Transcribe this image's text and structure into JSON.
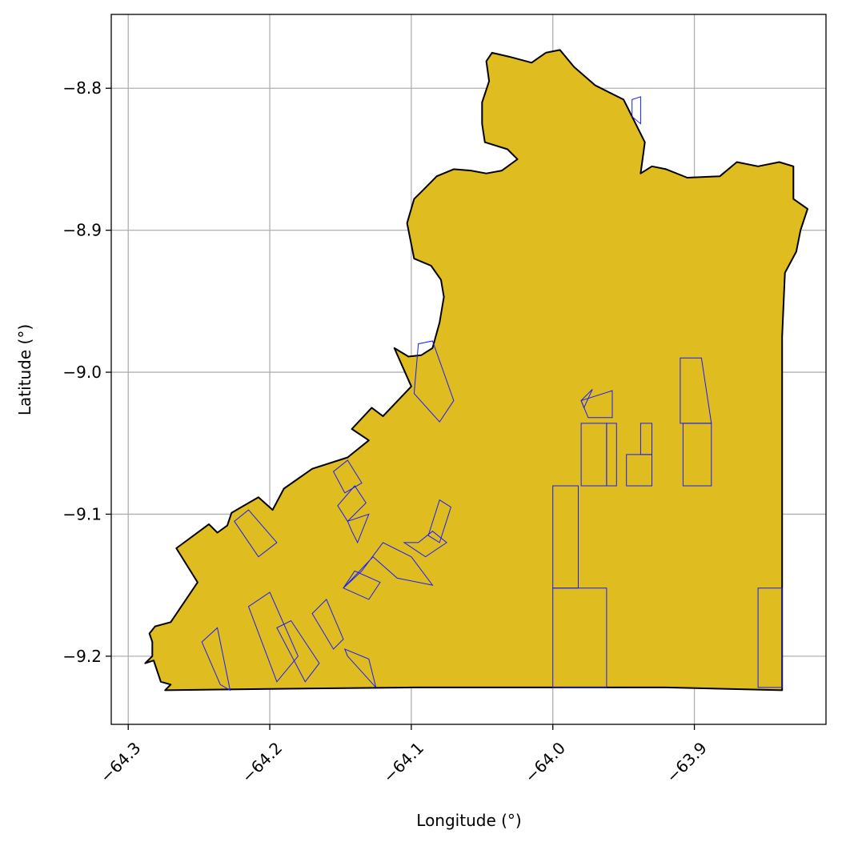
{
  "chart_data": {
    "type": "map",
    "xlabel": "Longitude (°)",
    "ylabel": "Latitude (°)",
    "xlim": [
      -64.312,
      -63.807
    ],
    "ylim": [
      -9.248,
      -8.748
    ],
    "x_ticks": [
      {
        "value": -64.3,
        "label": "−64.3"
      },
      {
        "value": -64.2,
        "label": "−64.2"
      },
      {
        "value": -64.1,
        "label": "−64.1"
      },
      {
        "value": -64.0,
        "label": "−64.0"
      },
      {
        "value": -63.9,
        "label": "−63.9"
      }
    ],
    "y_ticks": [
      {
        "value": -8.8,
        "label": "−8.8"
      },
      {
        "value": -8.9,
        "label": "−8.9"
      },
      {
        "value": -9.0,
        "label": "−9.0"
      },
      {
        "value": -9.1,
        "label": "−9.1"
      },
      {
        "value": -9.2,
        "label": "−9.2"
      }
    ],
    "grid": true,
    "colors": {
      "region_fill": "#dfbd20",
      "region_edge": "#000000",
      "parcel_edge": "#1a1aff",
      "grid": "#b0b0b0"
    },
    "region": [
      [
        -64.274,
        -9.224
      ],
      [
        -64.27,
        -9.22
      ],
      [
        -64.277,
        -9.218
      ],
      [
        -64.282,
        -9.203
      ],
      [
        -64.288,
        -9.205
      ],
      [
        -64.283,
        -9.2
      ],
      [
        -64.283,
        -9.19
      ],
      [
        -64.285,
        -9.184
      ],
      [
        -64.281,
        -9.179
      ],
      [
        -64.27,
        -9.176
      ],
      [
        -64.251,
        -9.148
      ],
      [
        -64.266,
        -9.124
      ],
      [
        -64.243,
        -9.107
      ],
      [
        -64.237,
        -9.113
      ],
      [
        -64.23,
        -9.108
      ],
      [
        -64.227,
        -9.099
      ],
      [
        -64.208,
        -9.088
      ],
      [
        -64.198,
        -9.097
      ],
      [
        -64.19,
        -9.082
      ],
      [
        -64.17,
        -9.068
      ],
      [
        -64.145,
        -9.06
      ],
      [
        -64.13,
        -9.048
      ],
      [
        -64.142,
        -9.04
      ],
      [
        -64.128,
        -9.025
      ],
      [
        -64.12,
        -9.031
      ],
      [
        -64.1,
        -9.01
      ],
      [
        -64.112,
        -8.983
      ],
      [
        -64.102,
        -8.989
      ],
      [
        -64.093,
        -8.988
      ],
      [
        -64.085,
        -8.983
      ],
      [
        -64.08,
        -8.965
      ],
      [
        -64.077,
        -8.947
      ],
      [
        -64.079,
        -8.935
      ],
      [
        -64.086,
        -8.925
      ],
      [
        -64.098,
        -8.92
      ],
      [
        -64.1,
        -8.91
      ],
      [
        -64.103,
        -8.895
      ],
      [
        -64.098,
        -8.878
      ],
      [
        -64.093,
        -8.873
      ],
      [
        -64.082,
        -8.862
      ],
      [
        -64.07,
        -8.857
      ],
      [
        -64.058,
        -8.858
      ],
      [
        -64.047,
        -8.86
      ],
      [
        -64.036,
        -8.858
      ],
      [
        -64.025,
        -8.85
      ],
      [
        -64.032,
        -8.843
      ],
      [
        -64.048,
        -8.838
      ],
      [
        -64.05,
        -8.825
      ],
      [
        -64.05,
        -8.81
      ],
      [
        -64.045,
        -8.795
      ],
      [
        -64.047,
        -8.781
      ],
      [
        -64.043,
        -8.775
      ],
      [
        -64.03,
        -8.778
      ],
      [
        -64.015,
        -8.782
      ],
      [
        -64.005,
        -8.775
      ],
      [
        -63.995,
        -8.773
      ],
      [
        -63.985,
        -8.785
      ],
      [
        -63.97,
        -8.798
      ],
      [
        -63.95,
        -8.808
      ],
      [
        -63.935,
        -8.838
      ],
      [
        -63.938,
        -8.86
      ],
      [
        -63.93,
        -8.855
      ],
      [
        -63.92,
        -8.857
      ],
      [
        -63.905,
        -8.863
      ],
      [
        -63.882,
        -8.862
      ],
      [
        -63.87,
        -8.852
      ],
      [
        -63.855,
        -8.855
      ],
      [
        -63.84,
        -8.852
      ],
      [
        -63.83,
        -8.855
      ],
      [
        -63.83,
        -8.878
      ],
      [
        -63.82,
        -8.885
      ],
      [
        -63.825,
        -8.9
      ],
      [
        -63.828,
        -8.915
      ],
      [
        -63.836,
        -8.93
      ],
      [
        -63.838,
        -8.975
      ],
      [
        -63.838,
        -9.03
      ],
      [
        -63.838,
        -9.15
      ],
      [
        -63.838,
        -9.224
      ],
      [
        -63.92,
        -9.222
      ],
      [
        -64.0,
        -9.222
      ],
      [
        -64.1,
        -9.222
      ],
      [
        -64.2,
        -9.223
      ],
      [
        -64.274,
        -9.224
      ]
    ],
    "parcels": [
      [
        [
          -64.08,
          -9.035
        ],
        [
          -64.07,
          -9.02
        ],
        [
          -64.085,
          -8.978
        ],
        [
          -64.095,
          -8.98
        ],
        [
          -64.098,
          -9.015
        ]
      ],
      [
        [
          -63.972,
          -9.012
        ],
        [
          -63.978,
          -9.025
        ],
        [
          -63.98,
          -9.02
        ]
      ],
      [
        [
          -63.98,
          -9.02
        ],
        [
          -63.975,
          -9.032
        ],
        [
          -63.958,
          -9.032
        ],
        [
          -63.958,
          -9.013
        ]
      ],
      [
        [
          -63.98,
          -9.036
        ],
        [
          -63.962,
          -9.036
        ],
        [
          -63.962,
          -9.08
        ],
        [
          -63.98,
          -9.08
        ]
      ],
      [
        [
          -63.962,
          -9.036
        ],
        [
          -63.955,
          -9.036
        ],
        [
          -63.955,
          -9.08
        ],
        [
          -63.962,
          -9.08
        ]
      ],
      [
        [
          -63.948,
          -9.058
        ],
        [
          -63.93,
          -9.058
        ],
        [
          -63.93,
          -9.08
        ],
        [
          -63.948,
          -9.08
        ]
      ],
      [
        [
          -63.938,
          -9.036
        ],
        [
          -63.93,
          -9.036
        ],
        [
          -63.93,
          -9.058
        ],
        [
          -63.938,
          -9.058
        ]
      ],
      [
        [
          -63.91,
          -8.99
        ],
        [
          -63.895,
          -8.99
        ],
        [
          -63.888,
          -9.036
        ],
        [
          -63.91,
          -9.036
        ]
      ],
      [
        [
          -63.908,
          -9.036
        ],
        [
          -63.888,
          -9.036
        ],
        [
          -63.888,
          -9.08
        ],
        [
          -63.908,
          -9.08
        ]
      ],
      [
        [
          -64.0,
          -9.08
        ],
        [
          -63.982,
          -9.08
        ],
        [
          -63.982,
          -9.152
        ],
        [
          -64.0,
          -9.152
        ]
      ],
      [
        [
          -64.0,
          -9.152
        ],
        [
          -63.962,
          -9.152
        ],
        [
          -63.962,
          -9.222
        ],
        [
          -64.0,
          -9.222
        ]
      ],
      [
        [
          -63.855,
          -9.152
        ],
        [
          -63.838,
          -9.152
        ],
        [
          -63.838,
          -9.222
        ],
        [
          -63.855,
          -9.222
        ]
      ],
      [
        [
          -63.944,
          -8.808
        ],
        [
          -63.938,
          -8.806
        ],
        [
          -63.938,
          -8.825
        ],
        [
          -63.944,
          -8.82
        ]
      ],
      [
        [
          -64.08,
          -9.12
        ],
        [
          -64.072,
          -9.095
        ],
        [
          -64.08,
          -9.09
        ],
        [
          -64.088,
          -9.115
        ]
      ],
      [
        [
          -64.155,
          -9.07
        ],
        [
          -64.145,
          -9.062
        ],
        [
          -64.135,
          -9.078
        ],
        [
          -64.147,
          -9.085
        ]
      ],
      [
        [
          -64.152,
          -9.094
        ],
        [
          -64.14,
          -9.08
        ],
        [
          -64.132,
          -9.092
        ],
        [
          -64.145,
          -9.105
        ]
      ],
      [
        [
          -64.145,
          -9.105
        ],
        [
          -64.13,
          -9.1
        ],
        [
          -64.138,
          -9.12
        ],
        [
          -64.142,
          -9.112
        ]
      ],
      [
        [
          -64.215,
          -9.097
        ],
        [
          -64.195,
          -9.12
        ],
        [
          -64.208,
          -9.13
        ],
        [
          -64.225,
          -9.105
        ]
      ],
      [
        [
          -64.248,
          -9.19
        ],
        [
          -64.235,
          -9.22
        ],
        [
          -64.228,
          -9.224
        ],
        [
          -64.237,
          -9.18
        ]
      ],
      [
        [
          -64.215,
          -9.165
        ],
        [
          -64.195,
          -9.218
        ],
        [
          -64.18,
          -9.2
        ],
        [
          -64.2,
          -9.155
        ]
      ],
      [
        [
          -64.185,
          -9.175
        ],
        [
          -64.165,
          -9.205
        ],
        [
          -64.175,
          -9.218
        ],
        [
          -64.195,
          -9.18
        ]
      ],
      [
        [
          -64.17,
          -9.17
        ],
        [
          -64.155,
          -9.195
        ],
        [
          -64.148,
          -9.188
        ],
        [
          -64.16,
          -9.16
        ]
      ],
      [
        [
          -64.145,
          -9.2
        ],
        [
          -64.125,
          -9.222
        ],
        [
          -64.13,
          -9.202
        ],
        [
          -64.147,
          -9.195
        ]
      ],
      [
        [
          -64.148,
          -9.152
        ],
        [
          -64.13,
          -9.16
        ],
        [
          -64.122,
          -9.148
        ],
        [
          -64.14,
          -9.14
        ]
      ],
      [
        [
          -64.148,
          -9.152
        ],
        [
          -64.127,
          -9.13
        ],
        [
          -64.11,
          -9.145
        ],
        [
          -64.085,
          -9.15
        ],
        [
          -64.1,
          -9.13
        ],
        [
          -64.12,
          -9.12
        ],
        [
          -64.135,
          -9.14
        ]
      ],
      [
        [
          -64.105,
          -9.12
        ],
        [
          -64.09,
          -9.13
        ],
        [
          -64.075,
          -9.12
        ],
        [
          -64.085,
          -9.112
        ],
        [
          -64.095,
          -9.12
        ]
      ]
    ]
  }
}
